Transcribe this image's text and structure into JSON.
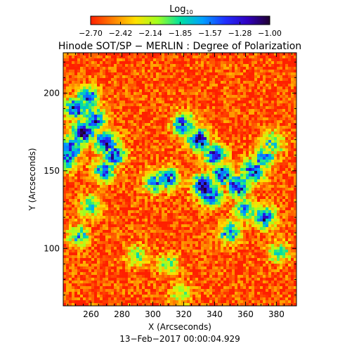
{
  "chart_data": {
    "type": "heatmap",
    "title": "Hinode SOT/SP − MERLIN : Degree of Polarization",
    "xlabel": "X (Arcseconds)",
    "ylabel": "Y (Arcseconds)",
    "footer": "13−Feb−2017 00:00:04.929",
    "colorbar": {
      "label_base": "Log",
      "label_sub": "10",
      "ticks": [
        "−2.70",
        "−2.42",
        "−2.14",
        "−1.85",
        "−1.57",
        "−1.28",
        "−1.00"
      ],
      "range": [
        -2.7,
        -1.0
      ],
      "colors": [
        "#ff2000",
        "#ff8000",
        "#ffe000",
        "#a0ff20",
        "#00e0a0",
        "#00a0ff",
        "#2030ff",
        "#3000c0",
        "#200030"
      ]
    },
    "xlim": [
      242,
      393
    ],
    "ylim": [
      63,
      226
    ],
    "xticks": [
      "260",
      "280",
      "300",
      "320",
      "340",
      "360",
      "380"
    ],
    "xtick_values": [
      260,
      280,
      300,
      320,
      340,
      360,
      380
    ],
    "yticks": [
      "100",
      "150",
      "200"
    ],
    "ytick_values": [
      100,
      150,
      200
    ],
    "background_level": -2.6,
    "features": [
      {
        "x": 250,
        "y": 190,
        "level": -1.3
      },
      {
        "x": 255,
        "y": 175,
        "level": -1.1
      },
      {
        "x": 262,
        "y": 183,
        "level": -1.3
      },
      {
        "x": 270,
        "y": 168,
        "level": -1.2
      },
      {
        "x": 275,
        "y": 160,
        "level": -1.4
      },
      {
        "x": 268,
        "y": 150,
        "level": -1.5
      },
      {
        "x": 247,
        "y": 165,
        "level": -1.3
      },
      {
        "x": 243,
        "y": 157,
        "level": -1.4
      },
      {
        "x": 258,
        "y": 197,
        "level": -1.5
      },
      {
        "x": 320,
        "y": 180,
        "level": -1.4
      },
      {
        "x": 330,
        "y": 170,
        "level": -1.2
      },
      {
        "x": 340,
        "y": 160,
        "level": -1.3
      },
      {
        "x": 345,
        "y": 148,
        "level": -1.4
      },
      {
        "x": 333,
        "y": 140,
        "level": -1.1
      },
      {
        "x": 338,
        "y": 134,
        "level": -1.3
      },
      {
        "x": 355,
        "y": 140,
        "level": -1.2
      },
      {
        "x": 365,
        "y": 150,
        "level": -1.3
      },
      {
        "x": 372,
        "y": 158,
        "level": -1.6
      },
      {
        "x": 360,
        "y": 125,
        "level": -1.6
      },
      {
        "x": 372,
        "y": 120,
        "level": -1.4
      },
      {
        "x": 350,
        "y": 110,
        "level": -1.6
      },
      {
        "x": 310,
        "y": 145,
        "level": -1.5
      },
      {
        "x": 302,
        "y": 143,
        "level": -1.6
      },
      {
        "x": 378,
        "y": 168,
        "level": -1.8
      },
      {
        "x": 260,
        "y": 127,
        "level": -1.8
      },
      {
        "x": 252,
        "y": 108,
        "level": -1.8
      },
      {
        "x": 382,
        "y": 97,
        "level": -1.9
      },
      {
        "x": 290,
        "y": 95,
        "level": -2.0
      },
      {
        "x": 310,
        "y": 90,
        "level": -2.0
      },
      {
        "x": 318,
        "y": 71,
        "level": -2.0
      }
    ]
  }
}
